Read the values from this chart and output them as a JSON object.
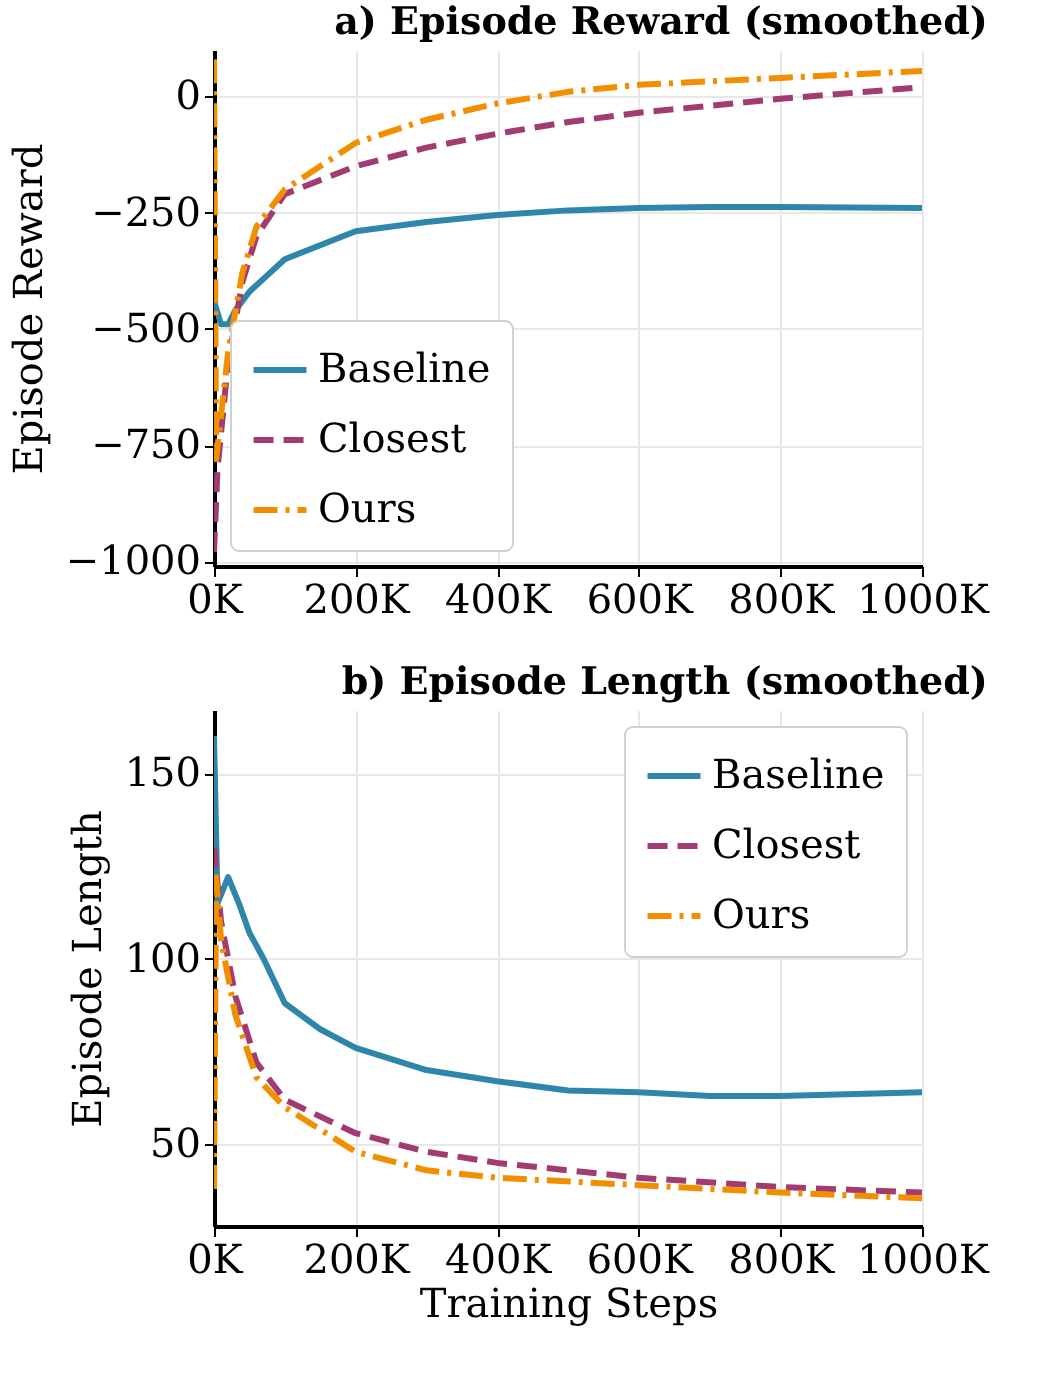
{
  "chart_data": [
    {
      "type": "line",
      "title": "a) Episode Reward (smoothed)",
      "ylabel": "Episode Reward",
      "xlim": [
        0,
        1000000
      ],
      "ylim": [
        -1010,
        100
      ],
      "xticks": [
        {
          "value": 0,
          "label": "0K"
        },
        {
          "value": 200000,
          "label": "200K"
        },
        {
          "value": 400000,
          "label": "400K"
        },
        {
          "value": 600000,
          "label": "600K"
        },
        {
          "value": 800000,
          "label": "800K"
        },
        {
          "value": 1000000,
          "label": "1000K"
        }
      ],
      "yticks": [
        {
          "value": -1000,
          "label": "−1000"
        },
        {
          "value": -750,
          "label": "−750"
        },
        {
          "value": -500,
          "label": "−500"
        },
        {
          "value": -250,
          "label": "−250"
        },
        0
      ],
      "grid": true,
      "legend": "bottom left",
      "series": [
        {
          "name": "Baseline",
          "color": "#2e86ab",
          "line_style": "solid",
          "x": [
            0,
            10000,
            20000,
            30000,
            50000,
            100000,
            200000,
            300000,
            400000,
            500000,
            600000,
            700000,
            800000,
            1000000
          ],
          "values": [
            -440,
            -490,
            -490,
            -460,
            -420,
            -350,
            -290,
            -270,
            -255,
            -245,
            -240,
            -238,
            -238,
            -240
          ]
        },
        {
          "name": "Closest",
          "color": "#a23b72",
          "line_style": "dashed",
          "x": [
            0,
            5000,
            20000,
            40000,
            60000,
            100000,
            150000,
            200000,
            300000,
            400000,
            500000,
            600000,
            700000,
            800000,
            1000000
          ],
          "values": [
            -980,
            -800,
            -570,
            -400,
            -300,
            -210,
            -180,
            -150,
            -110,
            -80,
            -55,
            -35,
            -20,
            -5,
            20
          ]
        },
        {
          "name": "Ours",
          "color": "#f18f01",
          "line_style": "dashdot",
          "x": [
            0,
            3000,
            20000,
            40000,
            60000,
            100000,
            200000,
            300000,
            400000,
            500000,
            600000,
            800000,
            1000000
          ],
          "values": [
            80,
            -780,
            -550,
            -380,
            -280,
            -200,
            -100,
            -50,
            -15,
            10,
            25,
            40,
            55
          ]
        }
      ]
    },
    {
      "type": "line",
      "title": "b) Episode Length (smoothed)",
      "xlabel": "Training Steps",
      "ylabel": "Episode Length",
      "xlim": [
        0,
        1000000
      ],
      "ylim": [
        28,
        167
      ],
      "xticks": [
        {
          "value": 0,
          "label": "0K"
        },
        {
          "value": 200000,
          "label": "200K"
        },
        {
          "value": 400000,
          "label": "400K"
        },
        {
          "value": 600000,
          "label": "600K"
        },
        {
          "value": 800000,
          "label": "800K"
        },
        {
          "value": 1000000,
          "label": "1000K"
        }
      ],
      "yticks": [
        50,
        100,
        150
      ],
      "grid": true,
      "legend": "top right",
      "series": [
        {
          "name": "Baseline",
          "color": "#2e86ab",
          "line_style": "solid",
          "x": [
            0,
            5000,
            20000,
            35000,
            50000,
            70000,
            100000,
            150000,
            200000,
            300000,
            400000,
            500000,
            600000,
            700000,
            800000,
            1000000
          ],
          "values": [
            160,
            115,
            122,
            115,
            107,
            100,
            88,
            81,
            76,
            70,
            67,
            64.5,
            64,
            63,
            63,
            64
          ]
        },
        {
          "name": "Closest",
          "color": "#a23b72",
          "line_style": "dashed",
          "x": [
            0,
            10000,
            30000,
            60000,
            100000,
            200000,
            300000,
            400000,
            600000,
            800000,
            1000000
          ],
          "values": [
            130,
            110,
            90,
            72,
            62,
            53,
            48,
            45,
            41,
            38.5,
            37
          ]
        },
        {
          "name": "Ours",
          "color": "#f18f01",
          "line_style": "dashdot",
          "x": [
            0,
            3000,
            10000,
            30000,
            60000,
            100000,
            200000,
            300000,
            400000,
            600000,
            800000,
            1000000
          ],
          "values": [
            38,
            122,
            105,
            85,
            68,
            60,
            48,
            43,
            41,
            39,
            37,
            35.5
          ]
        }
      ]
    }
  ]
}
